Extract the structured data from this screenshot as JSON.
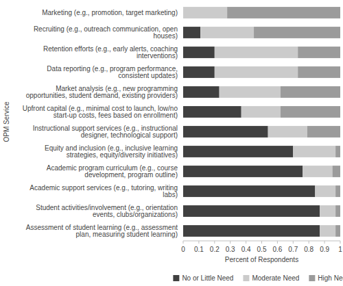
{
  "chart_data": {
    "type": "bar",
    "orientation": "horizontal",
    "stacked": true,
    "grid": false,
    "legend": "bottom",
    "x_label": "Percent of Respondents",
    "y_label": "OPM Service",
    "categories": [
      "Marketing (e.g., promotion, target marketing)",
      "Recruiting (e.g., outreach communication, open houses)",
      "Retention efforts (e.g., early alerts, coaching interventions)",
      "Data reporting (e.g., program performance, consistent updates)",
      "Market analysis (e.g., new programming opportunities, student demand, existing providers)",
      "Upfront capital (e.g., minimal cost to launch, low/no start-up costs, fees based on enrollment)",
      "Instructional support services (e.g., instructional designer, technological support)",
      "Equity and inclusion (e.g., inclusive learning strategies, equity/diversity initiatives)",
      "Academic program curriculum (e.g., course development, program outline)",
      "Academic support services (e.g., tutoring, writing labs)",
      "Student activities/involvement (e.g., orientation events, clubs/organizations)",
      "Assessment of student learning (e.g., assessment plan, measuring student learning)"
    ],
    "series": [
      {
        "name": "No or Little Need",
        "color": "#404040",
        "values": [
          0,
          0.11,
          0.2,
          0.2,
          0.23,
          0.37,
          0.54,
          0.7,
          0.76,
          0.84,
          0.87,
          0.87
        ]
      },
      {
        "name": "Moderate Need",
        "color": "#cbcbcb",
        "values": [
          0.28,
          0.34,
          0.53,
          0.53,
          0.39,
          0.25,
          0.25,
          0.27,
          0.19,
          0.13,
          0.1,
          0.1
        ]
      },
      {
        "name": "High Need",
        "color": "#9b9b9b",
        "values": [
          0.72,
          0.55,
          0.27,
          0.27,
          0.38,
          0.38,
          0.21,
          0.03,
          0.05,
          0.03,
          0.03,
          0.03
        ]
      }
    ],
    "xlim": [
      0,
      1
    ],
    "xticks": [
      0,
      0.1,
      0.2,
      0.3,
      0.4,
      0.5,
      0.6,
      0.7,
      0.8,
      0.9,
      1
    ]
  }
}
